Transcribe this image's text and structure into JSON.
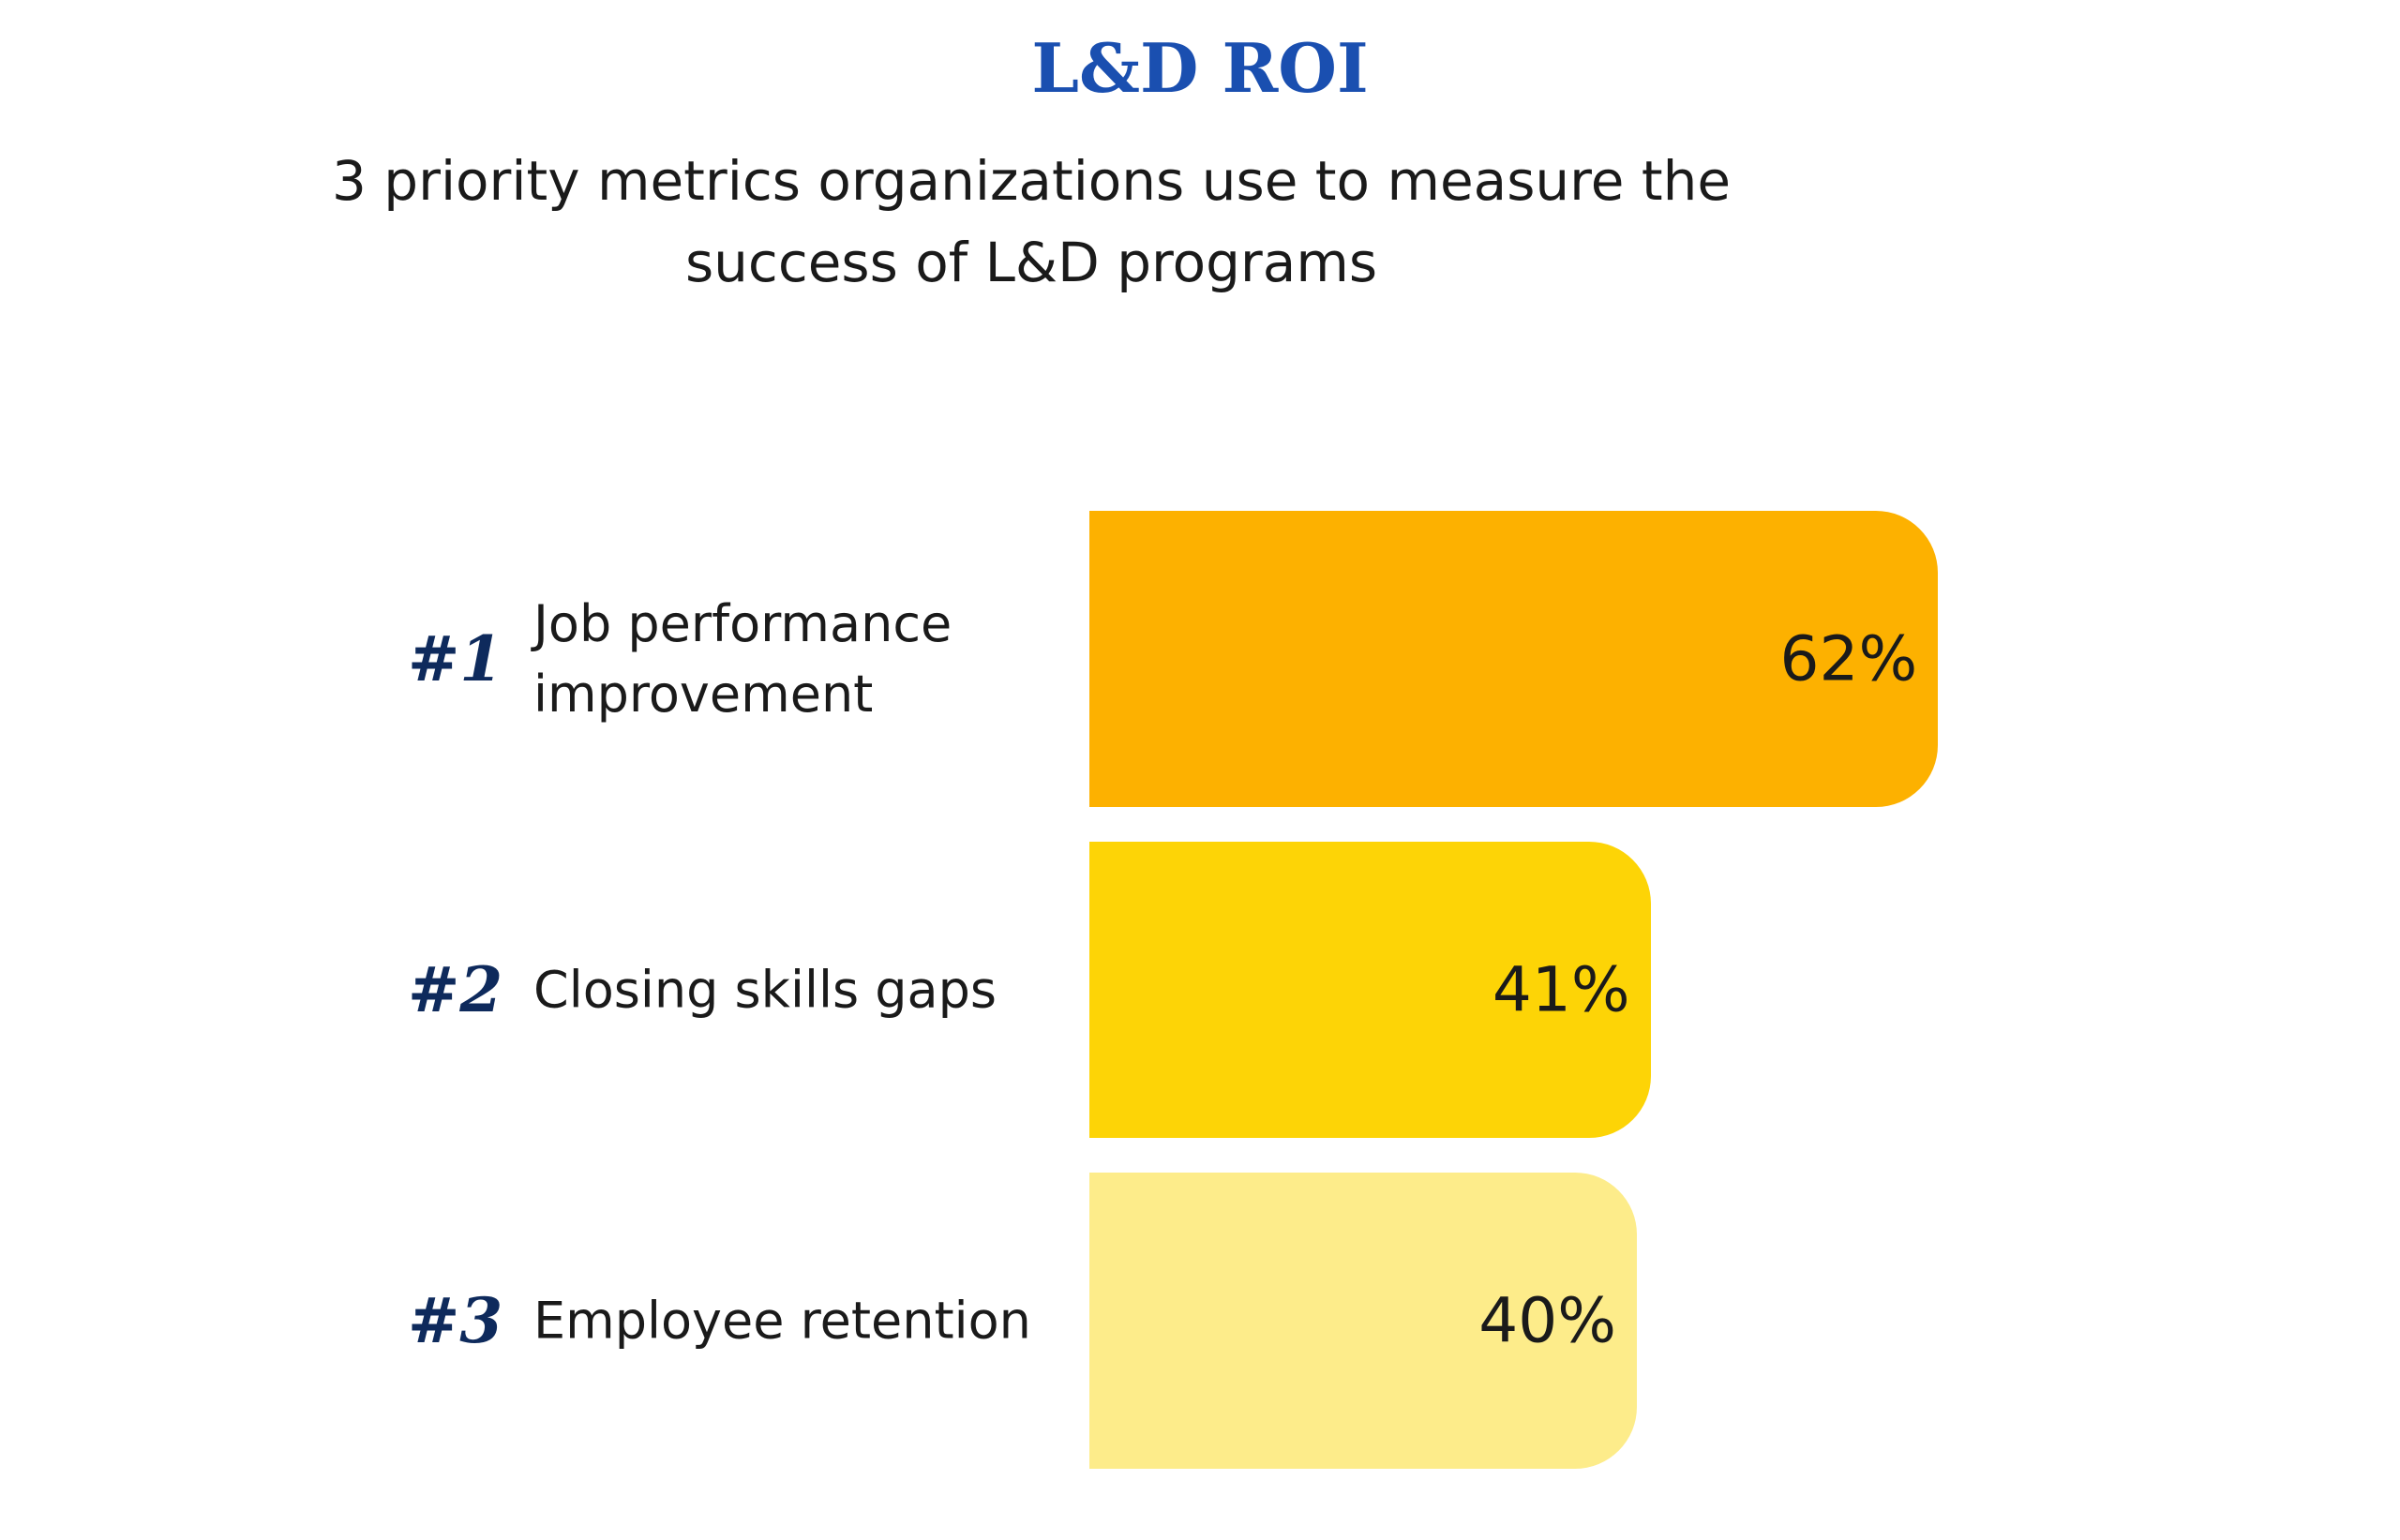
{
  "chart_data": {
    "type": "bar",
    "orientation": "horizontal",
    "title": "L&D ROI",
    "subtitle": "3 priority metrics organizations use to measure the success of L&D programs",
    "ranks": [
      "#1",
      "#2",
      "#3"
    ],
    "categories": [
      "Job performance\nimprovement",
      "Closing skills gaps",
      "Employee retention"
    ],
    "values": [
      62,
      41,
      40
    ],
    "value_labels": [
      "62%",
      "41%",
      "40%"
    ],
    "colors": [
      "#fdb100",
      "#fdd406",
      "#fdec8a"
    ]
  }
}
